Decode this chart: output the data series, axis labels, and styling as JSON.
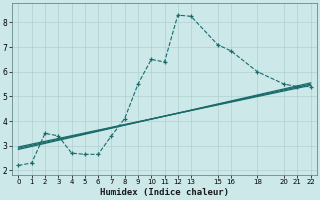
{
  "xlabel": "Humidex (Indice chaleur)",
  "background_color": "#cce8e8",
  "grid_color": "#b0d0d0",
  "line_color": "#1a6b6b",
  "xlim": [
    -0.5,
    22.5
  ],
  "ylim": [
    1.8,
    8.8
  ],
  "xticks": [
    0,
    1,
    2,
    3,
    4,
    5,
    6,
    7,
    8,
    9,
    10,
    11,
    12,
    13,
    15,
    16,
    18,
    20,
    21,
    22
  ],
  "yticks": [
    2,
    3,
    4,
    5,
    6,
    7,
    8
  ],
  "main_series": {
    "x": [
      0,
      1,
      2,
      3,
      4,
      5,
      6,
      7,
      8,
      9,
      10,
      11,
      12,
      13,
      15,
      16,
      18,
      20,
      21,
      22
    ],
    "y": [
      2.2,
      2.3,
      3.5,
      3.4,
      2.7,
      2.65,
      2.65,
      3.4,
      4.1,
      5.5,
      6.5,
      6.4,
      8.3,
      8.25,
      7.1,
      6.85,
      6.0,
      5.5,
      5.4,
      5.4
    ]
  },
  "trend_lines": [
    {
      "x": [
        0,
        22
      ],
      "y": [
        2.85,
        5.55
      ]
    },
    {
      "x": [
        0,
        22
      ],
      "y": [
        2.9,
        5.5
      ]
    },
    {
      "x": [
        0,
        22
      ],
      "y": [
        2.95,
        5.45
      ]
    }
  ]
}
